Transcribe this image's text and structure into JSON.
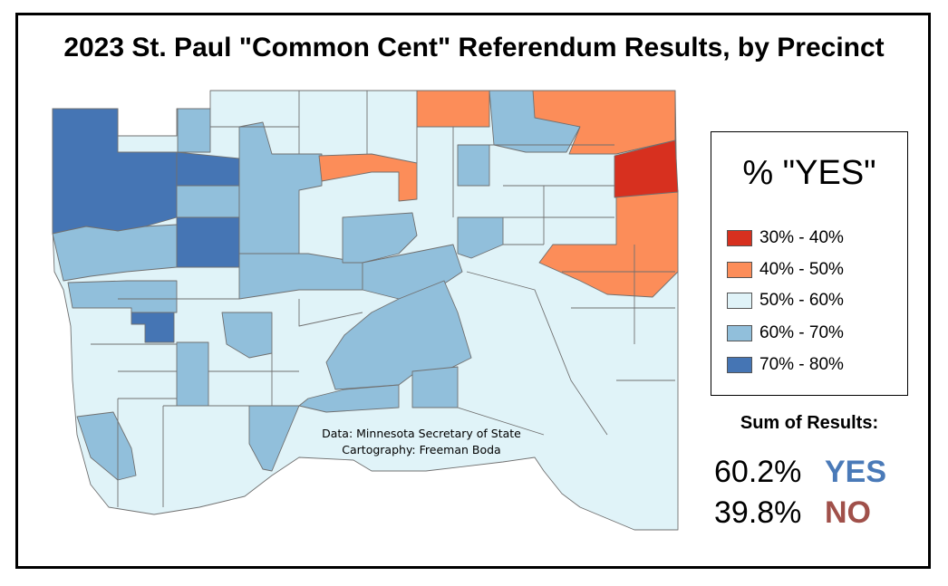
{
  "title": "2023 St. Paul \"Common Cent\" Referendum Results, by Precinct",
  "legend": {
    "title": "% \"YES\"",
    "items": [
      {
        "label": "30% - 40%",
        "color": "#d7301f"
      },
      {
        "label": "40% - 50%",
        "color": "#fc8d59"
      },
      {
        "label": "50% - 60%",
        "color": "#e0f3f8"
      },
      {
        "label": "60% - 70%",
        "color": "#91bfdb"
      },
      {
        "label": "70% - 80%",
        "color": "#4575b4"
      }
    ]
  },
  "summary": {
    "heading": "Sum of Results:",
    "yes_pct": "60.2%",
    "yes_label": "YES",
    "yes_color": "#4a7ab8",
    "no_pct": "39.8%",
    "no_label": "NO",
    "no_color": "#a0504a"
  },
  "credits": {
    "data": "Data: Minnesota Secretary of State",
    "cartography": "Cartography: Freeman Boda"
  }
}
